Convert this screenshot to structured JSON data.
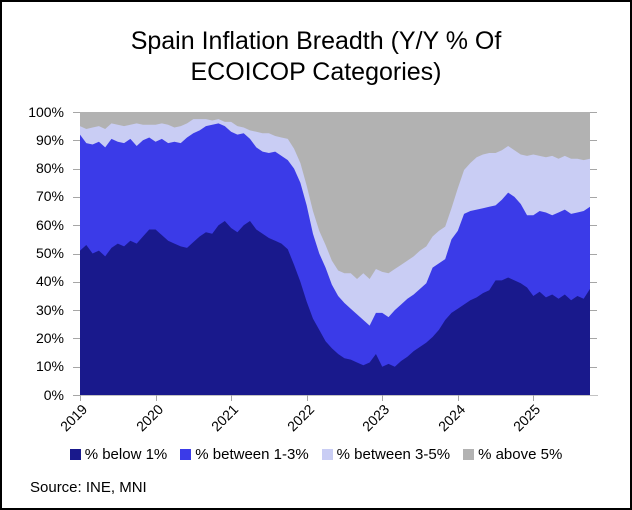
{
  "title": {
    "line1": "Spain Inflation Breadth (Y/Y % Of",
    "line2": "ECOICOP Categories)"
  },
  "source": "Source: INE, MNI",
  "axes": {
    "y_labels": [
      "100%",
      "90%",
      "80%",
      "70%",
      "60%",
      "50%",
      "40%",
      "30%",
      "20%",
      "10%",
      "0%"
    ],
    "x_labels": [
      "2019",
      "2020",
      "2021",
      "2022",
      "2023",
      "2024",
      "2025"
    ]
  },
  "colors": {
    "below1": "#19198c",
    "between13": "#3b3be8",
    "between35": "#c9cdf4",
    "above5": "#b2b2b2",
    "axis_line": "#c3c3c3",
    "tick": "#a6a6a6"
  },
  "chart_data": {
    "type": "area",
    "stacked": true,
    "stack_total": 100,
    "title": "Spain Inflation Breadth (Y/Y % Of ECOICOP Categories)",
    "source": "Source: INE, MNI",
    "ylabel": "",
    "xlabel": "",
    "ylim": [
      0,
      100
    ],
    "y_tick_step": 10,
    "grid": false,
    "legend_position": "bottom",
    "x": [
      "2019-01",
      "2019-02",
      "2019-03",
      "2019-04",
      "2019-05",
      "2019-06",
      "2019-07",
      "2019-08",
      "2019-09",
      "2019-10",
      "2019-11",
      "2019-12",
      "2020-01",
      "2020-02",
      "2020-03",
      "2020-04",
      "2020-05",
      "2020-06",
      "2020-07",
      "2020-08",
      "2020-09",
      "2020-10",
      "2020-11",
      "2020-12",
      "2021-01",
      "2021-02",
      "2021-03",
      "2021-04",
      "2021-05",
      "2021-06",
      "2021-07",
      "2021-08",
      "2021-09",
      "2021-10",
      "2021-11",
      "2021-12",
      "2022-01",
      "2022-02",
      "2022-03",
      "2022-04",
      "2022-05",
      "2022-06",
      "2022-07",
      "2022-08",
      "2022-09",
      "2022-10",
      "2022-11",
      "2022-12",
      "2023-01",
      "2023-02",
      "2023-03",
      "2023-04",
      "2023-05",
      "2023-06",
      "2023-07",
      "2023-08",
      "2023-09",
      "2023-10",
      "2023-11",
      "2023-12",
      "2024-01",
      "2024-02",
      "2024-03",
      "2024-04",
      "2024-05",
      "2024-06",
      "2024-07",
      "2024-08",
      "2024-09",
      "2024-10",
      "2024-11",
      "2024-12",
      "2025-01",
      "2025-02",
      "2025-03",
      "2025-04",
      "2025-05",
      "2025-06",
      "2025-07",
      "2025-08",
      "2025-09",
      "2025-10"
    ],
    "series": [
      {
        "name": "% below 1%",
        "color": "#19198c",
        "values": [
          51,
          53,
          50,
          51,
          49,
          52,
          53.5,
          52.5,
          54.5,
          53.5,
          56,
          58.5,
          58.5,
          56.5,
          54.5,
          53.5,
          52.5,
          52,
          54,
          56,
          57.5,
          57,
          60,
          61.5,
          59,
          57.5,
          60,
          61.5,
          58.5,
          57,
          55.5,
          54.5,
          53.5,
          51.5,
          46,
          40,
          33,
          27,
          23,
          19,
          16.5,
          14.5,
          13,
          12.5,
          11.5,
          10.5,
          11.5,
          14.5,
          10,
          11,
          10,
          12,
          13.5,
          15.5,
          17,
          18.5,
          20.5,
          23,
          26.5,
          29,
          30.5,
          32,
          33.5,
          34.5,
          36,
          37,
          40.5,
          40.5,
          41.5,
          40.5,
          39.5,
          38,
          35,
          36.5,
          34.5,
          35.5,
          34,
          35.5,
          33.5,
          35,
          34,
          37.5
        ]
      },
      {
        "name": "% between 1-3%",
        "color": "#3b3be8",
        "values": [
          41,
          36,
          38.5,
          38.5,
          38.5,
          38.5,
          36,
          36.5,
          36,
          34.5,
          34,
          32.5,
          31,
          34,
          34.5,
          36,
          36.5,
          39,
          38.5,
          37.5,
          37.5,
          38.5,
          36,
          33.5,
          34,
          34.5,
          32.5,
          29,
          29,
          29,
          30,
          31.5,
          31,
          31.5,
          34,
          35,
          34,
          30,
          27,
          26,
          22.5,
          20.5,
          19.5,
          18,
          17,
          16,
          13,
          14.5,
          19,
          16.5,
          20,
          20,
          20.5,
          20,
          20.5,
          21,
          24.5,
          23.5,
          21.5,
          26,
          27.5,
          32,
          31.5,
          31,
          30,
          29.5,
          26.5,
          28.5,
          30,
          29.5,
          28,
          25.5,
          28.5,
          28.5,
          30,
          28,
          30.5,
          30,
          30.5,
          29.5,
          31,
          29
        ]
      },
      {
        "name": "% between 3-5%",
        "color": "#c9cdf4",
        "values": [
          3,
          5,
          6,
          5.5,
          6.5,
          5.5,
          6,
          6,
          5,
          8,
          5.5,
          4.5,
          6,
          5.5,
          6.5,
          5,
          6,
          5,
          5,
          4,
          2.5,
          1.5,
          1.5,
          1.5,
          3.5,
          3,
          2,
          3,
          5.5,
          6.5,
          7,
          5.5,
          6.5,
          7.5,
          7,
          7,
          7,
          8,
          8,
          8,
          8.5,
          9,
          10.5,
          12.5,
          12.5,
          16.5,
          16.5,
          15.5,
          14.5,
          15.5,
          14.5,
          14,
          13.5,
          13.5,
          13.5,
          13,
          11,
          11.5,
          11.5,
          11,
          15,
          15.5,
          17,
          18.5,
          19,
          19,
          18.5,
          17.5,
          16.5,
          16.5,
          17.5,
          21,
          21.5,
          19.5,
          19.5,
          21,
          19,
          19,
          19.5,
          19,
          18,
          17
        ]
      },
      {
        "name": "% above 5%",
        "color": "#b2b2b2",
        "values": [
          5,
          6,
          5.5,
          5,
          6,
          4,
          4.5,
          5,
          4.5,
          4,
          4.5,
          4.5,
          4.5,
          4,
          4.5,
          5.5,
          5,
          4,
          2.5,
          2.5,
          2.5,
          3,
          2.5,
          3.5,
          3.5,
          5,
          5.5,
          6.5,
          7,
          7.5,
          7.5,
          8.5,
          9,
          9.5,
          13,
          18,
          26,
          35,
          42,
          47,
          52.5,
          56,
          57,
          57,
          59,
          57,
          59,
          55.5,
          56.5,
          57,
          55.5,
          54,
          52.5,
          51,
          49,
          47.5,
          44,
          42,
          40.5,
          34,
          27,
          20.5,
          18,
          16,
          15,
          14.5,
          14.5,
          13.5,
          12,
          13.5,
          15,
          15.5,
          15,
          15.5,
          16,
          15.5,
          16.5,
          15.5,
          16.5,
          16.5,
          17,
          16.5
        ]
      }
    ]
  }
}
